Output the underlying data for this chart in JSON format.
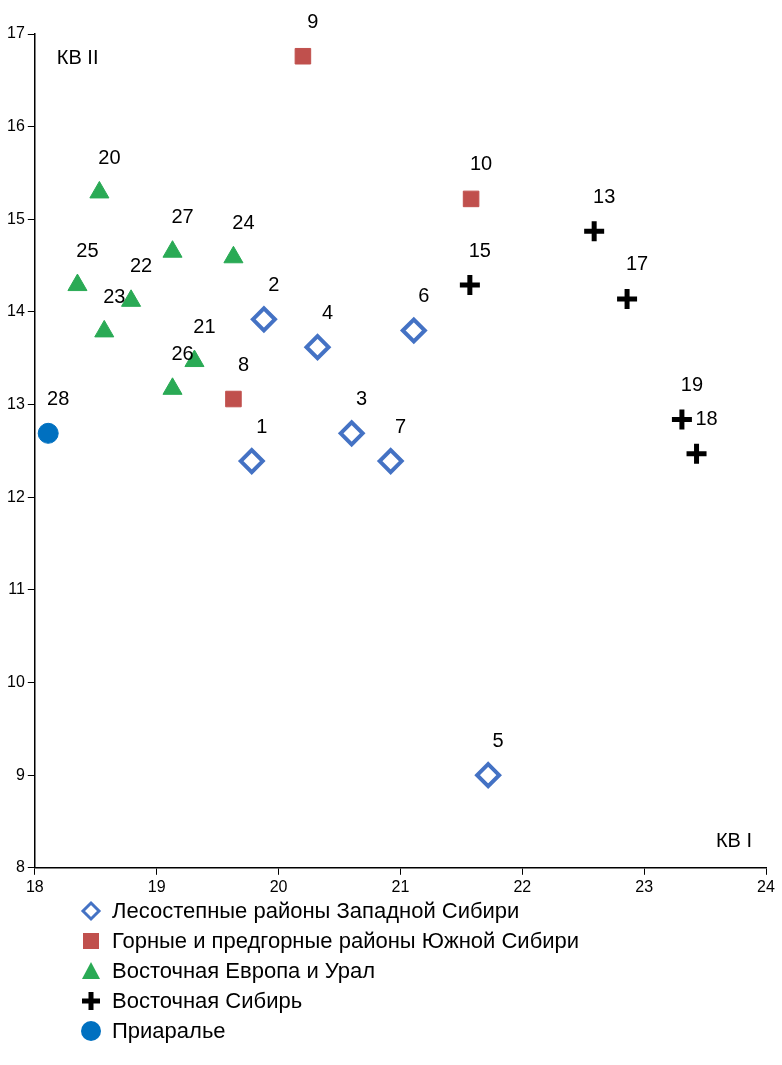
{
  "chart_data": {
    "type": "scatter",
    "xlabel": "КВ I",
    "ylabel": "КВ II",
    "xlim": [
      18,
      24
    ],
    "xticks": [
      18,
      19,
      20,
      21,
      22,
      23,
      24
    ],
    "ylim": [
      8,
      17
    ],
    "yticks": [
      8,
      9,
      10,
      11,
      12,
      13,
      14,
      15,
      16,
      17
    ],
    "grid": false,
    "legend": "bottom",
    "series": [
      {
        "name": "Лесостепные районы Западной Сибири",
        "color": "#4472c4",
        "marker": "diamond",
        "x": [
          19.78,
          19.88,
          20.6,
          20.32,
          21.72,
          21.11,
          20.92
        ],
        "values": [
          12.39,
          13.92,
          12.69,
          13.62,
          9.0,
          13.8,
          12.39
        ]
      },
      {
        "name": "Горные и предгорные районы Южной Сибири",
        "color": "#c0504d",
        "marker": "square",
        "x": [
          19.63,
          20.2,
          21.58
        ],
        "values": [
          13.06,
          16.76,
          15.22
        ]
      },
      {
        "name": "Восточная Европа и Урал",
        "color": "#2aaa55",
        "marker": "triangle",
        "x": [
          18.53,
          19.31,
          18.79,
          18.57,
          19.63,
          18.35,
          19.13,
          19.13
        ],
        "values": [
          15.29,
          13.47,
          14.12,
          13.79,
          14.59,
          14.29,
          13.17,
          14.65
        ]
      },
      {
        "name": "Восточная Сибирь",
        "color": "#000000",
        "marker": "cross",
        "x": [
          22.59,
          21.57,
          22.86,
          23.43,
          23.31
        ],
        "values": [
          14.87,
          14.29,
          14.14,
          12.47,
          12.84
        ]
      },
      {
        "name": "Приаралье",
        "color": "#0070c0",
        "marker": "circle",
        "x": [
          18.11
        ],
        "values": [
          12.69
        ]
      }
    ],
    "annotations": [
      {
        "text": "1",
        "x": 19.78,
        "y": 12.39
      },
      {
        "text": "2",
        "x": 19.88,
        "y": 13.92
      },
      {
        "text": "3",
        "x": 20.6,
        "y": 12.69
      },
      {
        "text": "4",
        "x": 20.32,
        "y": 13.62
      },
      {
        "text": "5",
        "x": 21.72,
        "y": 9.0
      },
      {
        "text": "6",
        "x": 21.11,
        "y": 13.8
      },
      {
        "text": "7",
        "x": 20.92,
        "y": 12.39
      },
      {
        "text": "8",
        "x": 19.63,
        "y": 13.06
      },
      {
        "text": "9",
        "x": 20.2,
        "y": 16.76
      },
      {
        "text": "10",
        "x": 21.58,
        "y": 15.22
      },
      {
        "text": "20",
        "x": 18.53,
        "y": 15.29
      },
      {
        "text": "21",
        "x": 19.31,
        "y": 13.47
      },
      {
        "text": "22",
        "x": 18.79,
        "y": 14.12
      },
      {
        "text": "23",
        "x": 18.57,
        "y": 13.79
      },
      {
        "text": "24",
        "x": 19.63,
        "y": 14.59
      },
      {
        "text": "25",
        "x": 18.35,
        "y": 14.29
      },
      {
        "text": "26",
        "x": 19.13,
        "y": 13.17
      },
      {
        "text": "27",
        "x": 19.13,
        "y": 14.65
      },
      {
        "text": "13",
        "x": 22.59,
        "y": 14.87
      },
      {
        "text": "15",
        "x": 21.57,
        "y": 14.29
      },
      {
        "text": "17",
        "x": 22.86,
        "y": 14.14
      },
      {
        "text": "18",
        "x": 23.43,
        "y": 12.47
      },
      {
        "text": "19",
        "x": 23.31,
        "y": 12.84
      },
      {
        "text": "28",
        "x": 18.11,
        "y": 12.69
      }
    ]
  }
}
